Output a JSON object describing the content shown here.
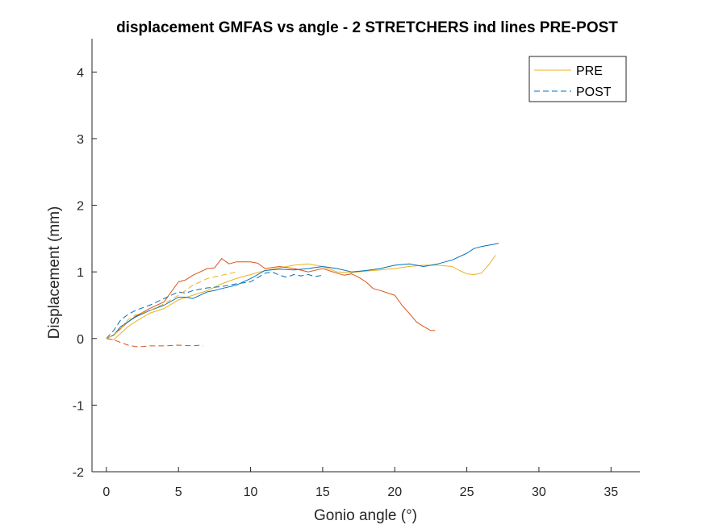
{
  "chart_data": {
    "type": "line",
    "title": "displacement GMFAS vs angle - 2 STRETCHERS ind lines PRE-POST",
    "xlabel": "Gonio angle (°)",
    "ylabel": "Displacement (mm)",
    "xlim": [
      -1,
      37
    ],
    "ylim": [
      -2,
      4.5
    ],
    "xticks": [
      0,
      5,
      10,
      15,
      20,
      25,
      30,
      35
    ],
    "yticks": [
      -2,
      -1,
      0,
      1,
      2,
      3,
      4
    ],
    "grid": false,
    "legend": {
      "position": "top-right",
      "entries": [
        "PRE",
        "POST"
      ]
    },
    "colors": {
      "blue": "#0072BD",
      "orange": "#D95319",
      "yellow": "#EDB120"
    },
    "series": [
      {
        "legend": "PRE",
        "style": "solid",
        "color": "#EDB120",
        "x": [
          0,
          0.5,
          1,
          1.5,
          2,
          3,
          4,
          5,
          6,
          7,
          8,
          9,
          10,
          11,
          12,
          13,
          14,
          15,
          16,
          17,
          18,
          19,
          20,
          21,
          22,
          23,
          24,
          24.5,
          25,
          25.5,
          26,
          26.5,
          27
        ],
        "y": [
          0,
          -0.02,
          0.08,
          0.18,
          0.25,
          0.38,
          0.45,
          0.58,
          0.65,
          0.72,
          0.82,
          0.9,
          0.96,
          1.02,
          1.06,
          1.1,
          1.12,
          1.08,
          1.0,
          0.99,
          1.01,
          1.03,
          1.05,
          1.08,
          1.1,
          1.1,
          1.08,
          1.02,
          0.97,
          0.96,
          0.98,
          1.1,
          1.25
        ]
      },
      {
        "style": "solid",
        "color": "#D95319",
        "x": [
          0,
          0.5,
          1,
          1.5,
          2,
          3,
          4,
          5,
          5.5,
          6,
          7,
          7.5,
          8,
          8.5,
          9,
          10,
          10.5,
          11,
          12,
          13,
          14,
          15,
          16,
          16.5,
          17,
          17.5,
          18,
          18.5,
          19,
          20,
          20.5,
          21,
          21.5,
          22,
          22.5,
          22.8
        ],
        "y": [
          0,
          0.05,
          0.15,
          0.25,
          0.33,
          0.45,
          0.55,
          0.85,
          0.88,
          0.95,
          1.05,
          1.06,
          1.2,
          1.12,
          1.15,
          1.15,
          1.13,
          1.05,
          1.08,
          1.05,
          1.0,
          1.05,
          0.98,
          0.95,
          0.97,
          0.92,
          0.85,
          0.75,
          0.72,
          0.65,
          0.5,
          0.38,
          0.25,
          0.18,
          0.12,
          0.12
        ]
      },
      {
        "style": "solid",
        "color": "#0072BD",
        "x": [
          0,
          0.5,
          1,
          2,
          3,
          4,
          5,
          5.5,
          6,
          6.5,
          7,
          7.5,
          8,
          9,
          10,
          11,
          12,
          13,
          14,
          15,
          16,
          17,
          18,
          19,
          20,
          21,
          22,
          22.5,
          23,
          24,
          25,
          25.5,
          26,
          26.5,
          27,
          27.2
        ],
        "y": [
          0,
          0.05,
          0.18,
          0.32,
          0.42,
          0.5,
          0.62,
          0.62,
          0.6,
          0.65,
          0.7,
          0.72,
          0.75,
          0.8,
          0.9,
          1.02,
          1.04,
          1.03,
          1.05,
          1.08,
          1.05,
          1.0,
          1.02,
          1.05,
          1.1,
          1.12,
          1.08,
          1.1,
          1.12,
          1.18,
          1.28,
          1.35,
          1.38,
          1.4,
          1.42,
          1.43
        ]
      },
      {
        "legend": "POST",
        "style": "dashed",
        "color": "#0072BD",
        "x": [
          0,
          0.5,
          1,
          1.5,
          2,
          3,
          4,
          4.5,
          5,
          5.5,
          6,
          7,
          8,
          9,
          10,
          11,
          11.5,
          12,
          12.5,
          13,
          13.5,
          14,
          14.5,
          15
        ],
        "y": [
          0,
          0.12,
          0.28,
          0.36,
          0.42,
          0.5,
          0.6,
          0.65,
          0.7,
          0.68,
          0.72,
          0.76,
          0.78,
          0.82,
          0.85,
          0.98,
          1.0,
          0.95,
          0.92,
          0.96,
          0.94,
          0.96,
          0.93,
          0.95
        ]
      },
      {
        "style": "dashed",
        "color": "#D95319",
        "x": [
          0,
          0.5,
          1,
          1.5,
          2,
          2.5,
          3,
          4,
          5,
          6,
          6.5,
          6.7
        ],
        "y": [
          0,
          -0.02,
          -0.06,
          -0.1,
          -0.12,
          -0.12,
          -0.11,
          -0.11,
          -0.1,
          -0.11,
          -0.1,
          -0.11
        ]
      },
      {
        "style": "dashed",
        "color": "#EDB120",
        "x": [
          0,
          0.5,
          1,
          1.5,
          2,
          3,
          4,
          5,
          5.5,
          6,
          7,
          8,
          9
        ],
        "y": [
          0,
          0.05,
          0.15,
          0.28,
          0.35,
          0.42,
          0.52,
          0.65,
          0.72,
          0.8,
          0.9,
          0.95,
          1.0
        ]
      }
    ]
  }
}
